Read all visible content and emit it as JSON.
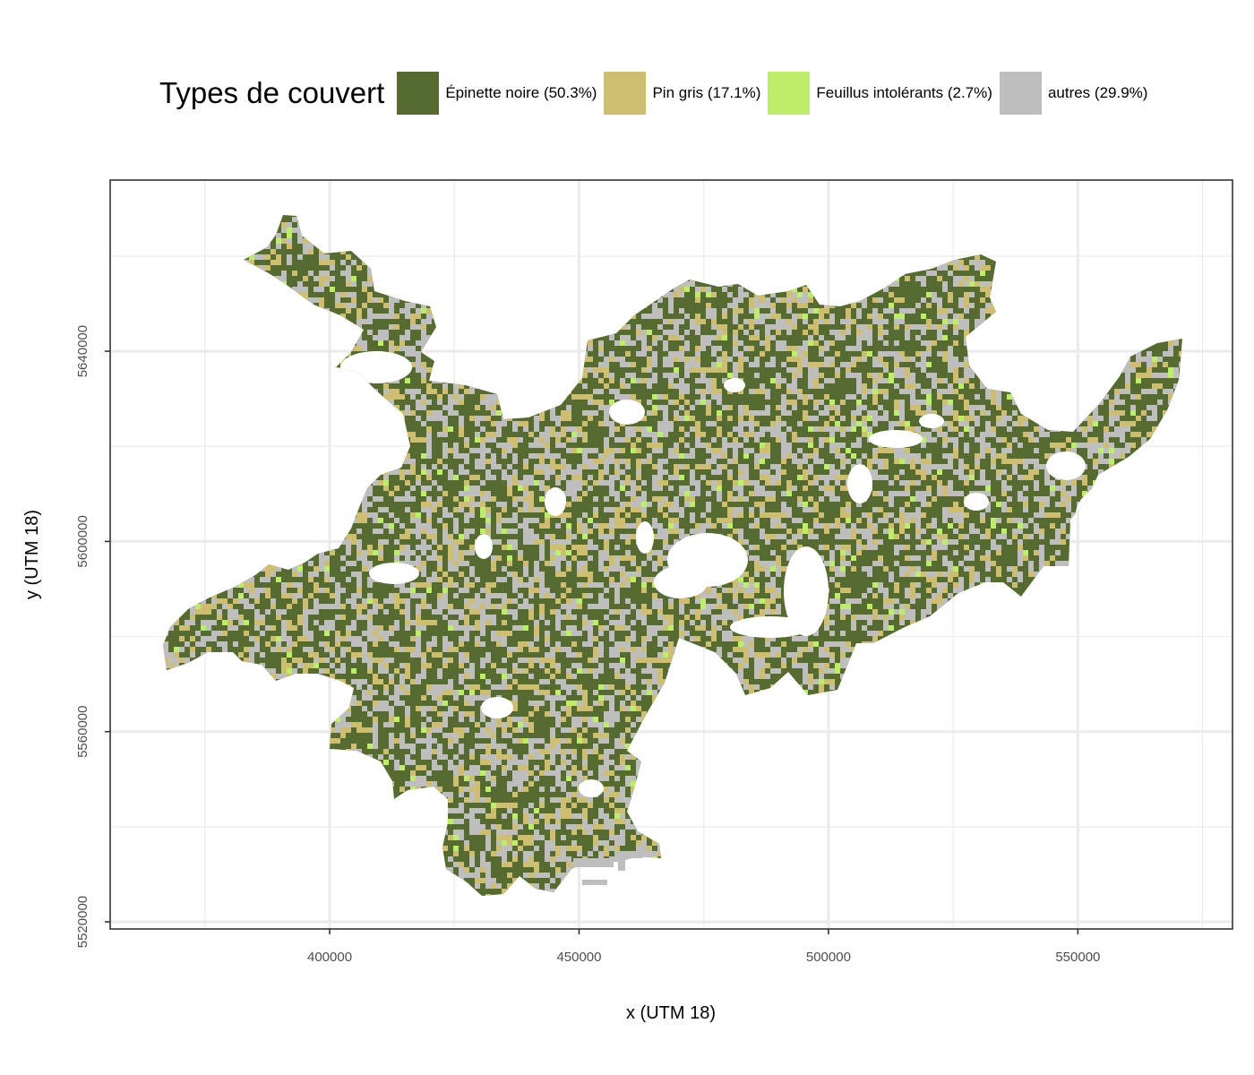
{
  "legend": {
    "title": "Types de couvert",
    "items": [
      {
        "label": "Épinette noire (50.3%)",
        "color": "#556B2F",
        "share": 50.3
      },
      {
        "label": "Pin gris (17.1%)",
        "color": "#CDBE70",
        "share": 17.1
      },
      {
        "label": "Feuillus intolérants (2.7%)",
        "color": "#BCEE68",
        "share": 2.7
      },
      {
        "label": "autres (29.9%)",
        "color": "#BEBEBE",
        "share": 29.9
      }
    ]
  },
  "axes": {
    "xlabel": "x (UTM 18)",
    "ylabel": "y (UTM 18)",
    "x_ticks": [
      "400000",
      "450000",
      "500000",
      "550000"
    ],
    "y_ticks": [
      "5520000",
      "5560000",
      "5600000",
      "5640000"
    ],
    "x_range": [
      356000,
      581000
    ],
    "y_range": [
      5518500,
      5676000
    ]
  }
}
